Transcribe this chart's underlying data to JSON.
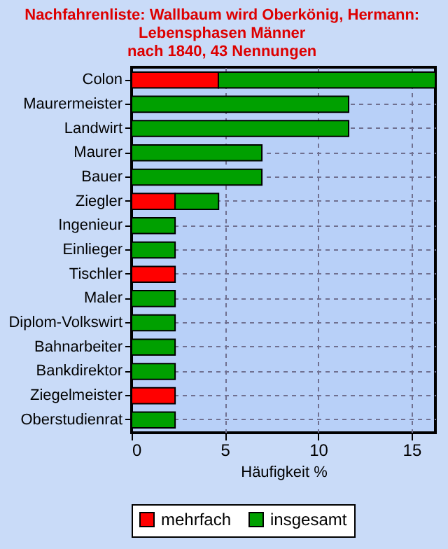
{
  "chart_data": {
    "type": "bar",
    "orientation": "horizontal",
    "stacked": true,
    "title": "Nachfahrenliste: Wallbaum wird Oberkönig, Hermann:\nLebensphasen Männer\nnach 1840, 43 Nennungen",
    "xlabel": "Häufigkeit %",
    "categories": [
      "Colon",
      "Maurermeister",
      "Landwirt",
      "Maurer",
      "Bauer",
      "Ziegler",
      "Ingenieur",
      "Einlieger",
      "Tischler",
      "Maler",
      "Diplom-Volkswirt",
      "Bahnarbeiter",
      "Bankdirektor",
      "Ziegelmeister",
      "Oberstudienrat"
    ],
    "series": [
      {
        "name": "mehrfach",
        "color": "#ff0000",
        "values": [
          4.65,
          null,
          null,
          null,
          null,
          2.33,
          null,
          null,
          2.33,
          null,
          null,
          null,
          null,
          2.33,
          null
        ]
      },
      {
        "name": "insgesamt",
        "color": "#00a000",
        "values": [
          11.63,
          11.63,
          11.63,
          6.98,
          6.98,
          2.33,
          2.33,
          2.33,
          null,
          2.33,
          2.33,
          2.33,
          2.33,
          null,
          2.33
        ]
      }
    ],
    "xlim": [
      0,
      16.28
    ],
    "xticks": [
      0,
      5,
      10,
      15
    ],
    "grid": true,
    "legend": "bottom"
  }
}
